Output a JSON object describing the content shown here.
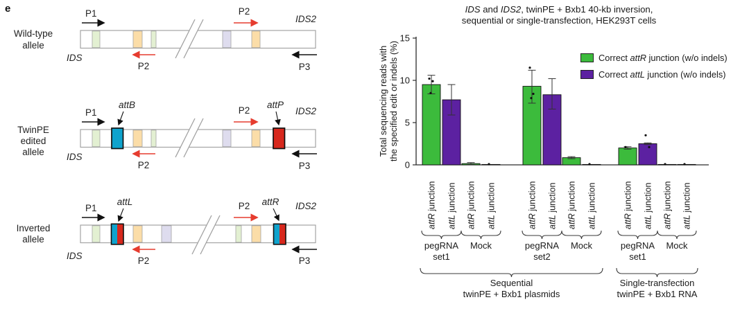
{
  "panel_label": "e",
  "diagram": {
    "rows": [
      {
        "name_lines": [
          "Wild-type",
          "allele"
        ]
      },
      {
        "name_lines": [
          "TwinPE",
          "edited",
          "allele"
        ],
        "site_left": "attB",
        "site_right": "attP"
      },
      {
        "name_lines": [
          "Inverted",
          "allele"
        ],
        "site_left": "attL",
        "site_right": "attR"
      }
    ],
    "primers": {
      "p1": "P1",
      "p2": "P2",
      "p3": "P3"
    },
    "genes": {
      "left": "IDS",
      "right": "IDS2"
    },
    "colors": {
      "exon_green": "#e3f0d2",
      "exon_orange": "#fbdda8",
      "exon_lavender": "#dedcee",
      "attB_cyan": "#0fa3cd",
      "attP_red": "#d7281d",
      "primer_red": "#e63c2f",
      "bar_outline": "#a3a3a3"
    }
  },
  "chart_data": {
    "type": "bar",
    "title_segments": [
      {
        "text": "IDS",
        "italic": true
      },
      {
        "text": " and ",
        "italic": false
      },
      {
        "text": "IDS2",
        "italic": true
      },
      {
        "text": ", twinPE + Bxb1 40-kb inversion,",
        "italic": false
      }
    ],
    "title_line2": "sequential or single-transfection, HEK293T cells",
    "ylabel_lines": [
      "Total sequencing reads with",
      "the specified edit or indels (%)"
    ],
    "ylim": [
      0,
      15
    ],
    "yticks": [
      0,
      5,
      10,
      15
    ],
    "grid": false,
    "legend_position": "upper right",
    "bar_tick_suffix": " junction",
    "series": [
      {
        "name": "Correct attR junction (w/o indels)",
        "color": "#3cbb3c",
        "segments": [
          {
            "text": "Correct ",
            "italic": false
          },
          {
            "text": "attR",
            "italic": true
          },
          {
            "text": " junction (w/o indels)",
            "italic": false
          }
        ]
      },
      {
        "name": "Correct attL junction (w/o indels)",
        "color": "#5c21a1",
        "segments": [
          {
            "text": "Correct ",
            "italic": false
          },
          {
            "text": "attL",
            "italic": true
          },
          {
            "text": " junction (w/o indels)",
            "italic": false
          }
        ]
      }
    ],
    "conditions": [
      {
        "label_lines": [
          "pegRNA",
          "set1"
        ],
        "section": 0,
        "bars": [
          {
            "junction": "attR",
            "value": 9.5,
            "err_minus": 1.1,
            "err_plus": 1.1,
            "points": [
              10.2,
              9.9,
              8.5
            ]
          },
          {
            "junction": "attL",
            "value": 7.7,
            "err_minus": 1.8,
            "err_plus": 1.8,
            "points": []
          }
        ]
      },
      {
        "label_lines": [
          "Mock"
        ],
        "section": 0,
        "bars": [
          {
            "junction": "attR",
            "value": 0.15,
            "err_minus": 0.12,
            "err_plus": 0.12,
            "points": []
          },
          {
            "junction": "attL",
            "value": 0.03,
            "err_minus": 0.03,
            "err_plus": 0.03,
            "points": [
              0.08
            ]
          }
        ]
      },
      {
        "label_lines": [
          "pegRNA",
          "set2"
        ],
        "section": 0,
        "bars": [
          {
            "junction": "attR",
            "value": 9.3,
            "err_minus": 2.0,
            "err_plus": 1.9,
            "points": [
              11.5,
              8.4,
              7.9
            ]
          },
          {
            "junction": "attL",
            "value": 8.3,
            "err_minus": 1.7,
            "err_plus": 1.9,
            "points": []
          }
        ]
      },
      {
        "label_lines": [
          "Mock"
        ],
        "section": 0,
        "bars": [
          {
            "junction": "attR",
            "value": 0.85,
            "err_minus": 0.12,
            "err_plus": 0.12,
            "points": []
          },
          {
            "junction": "attL",
            "value": 0.03,
            "err_minus": 0.03,
            "err_plus": 0.03,
            "points": [
              0.08
            ]
          }
        ]
      },
      {
        "label_lines": [
          "pegRNA",
          "set1"
        ],
        "section": 1,
        "bars": [
          {
            "junction": "attR",
            "value": 2.0,
            "err_minus": 0.15,
            "err_plus": 0.15,
            "points": [
              2.1
            ]
          },
          {
            "junction": "attL",
            "value": 2.5,
            "err_minus": 0.1,
            "err_plus": 0.1,
            "points": [
              3.5,
              2.1
            ]
          }
        ]
      },
      {
        "label_lines": [
          "Mock"
        ],
        "section": 1,
        "bars": [
          {
            "junction": "attR",
            "value": 0.03,
            "err_minus": 0.03,
            "err_plus": 0.03,
            "points": [
              0.08
            ]
          },
          {
            "junction": "attL",
            "value": 0.03,
            "err_minus": 0.03,
            "err_plus": 0.03,
            "points": [
              0.08
            ]
          }
        ]
      }
    ],
    "sections": [
      {
        "label_lines": [
          "Sequential",
          "twinPE + Bxb1 plasmids"
        ]
      },
      {
        "label_lines": [
          "Single-transfection",
          "twinPE + Bxb1 RNA"
        ]
      }
    ]
  }
}
